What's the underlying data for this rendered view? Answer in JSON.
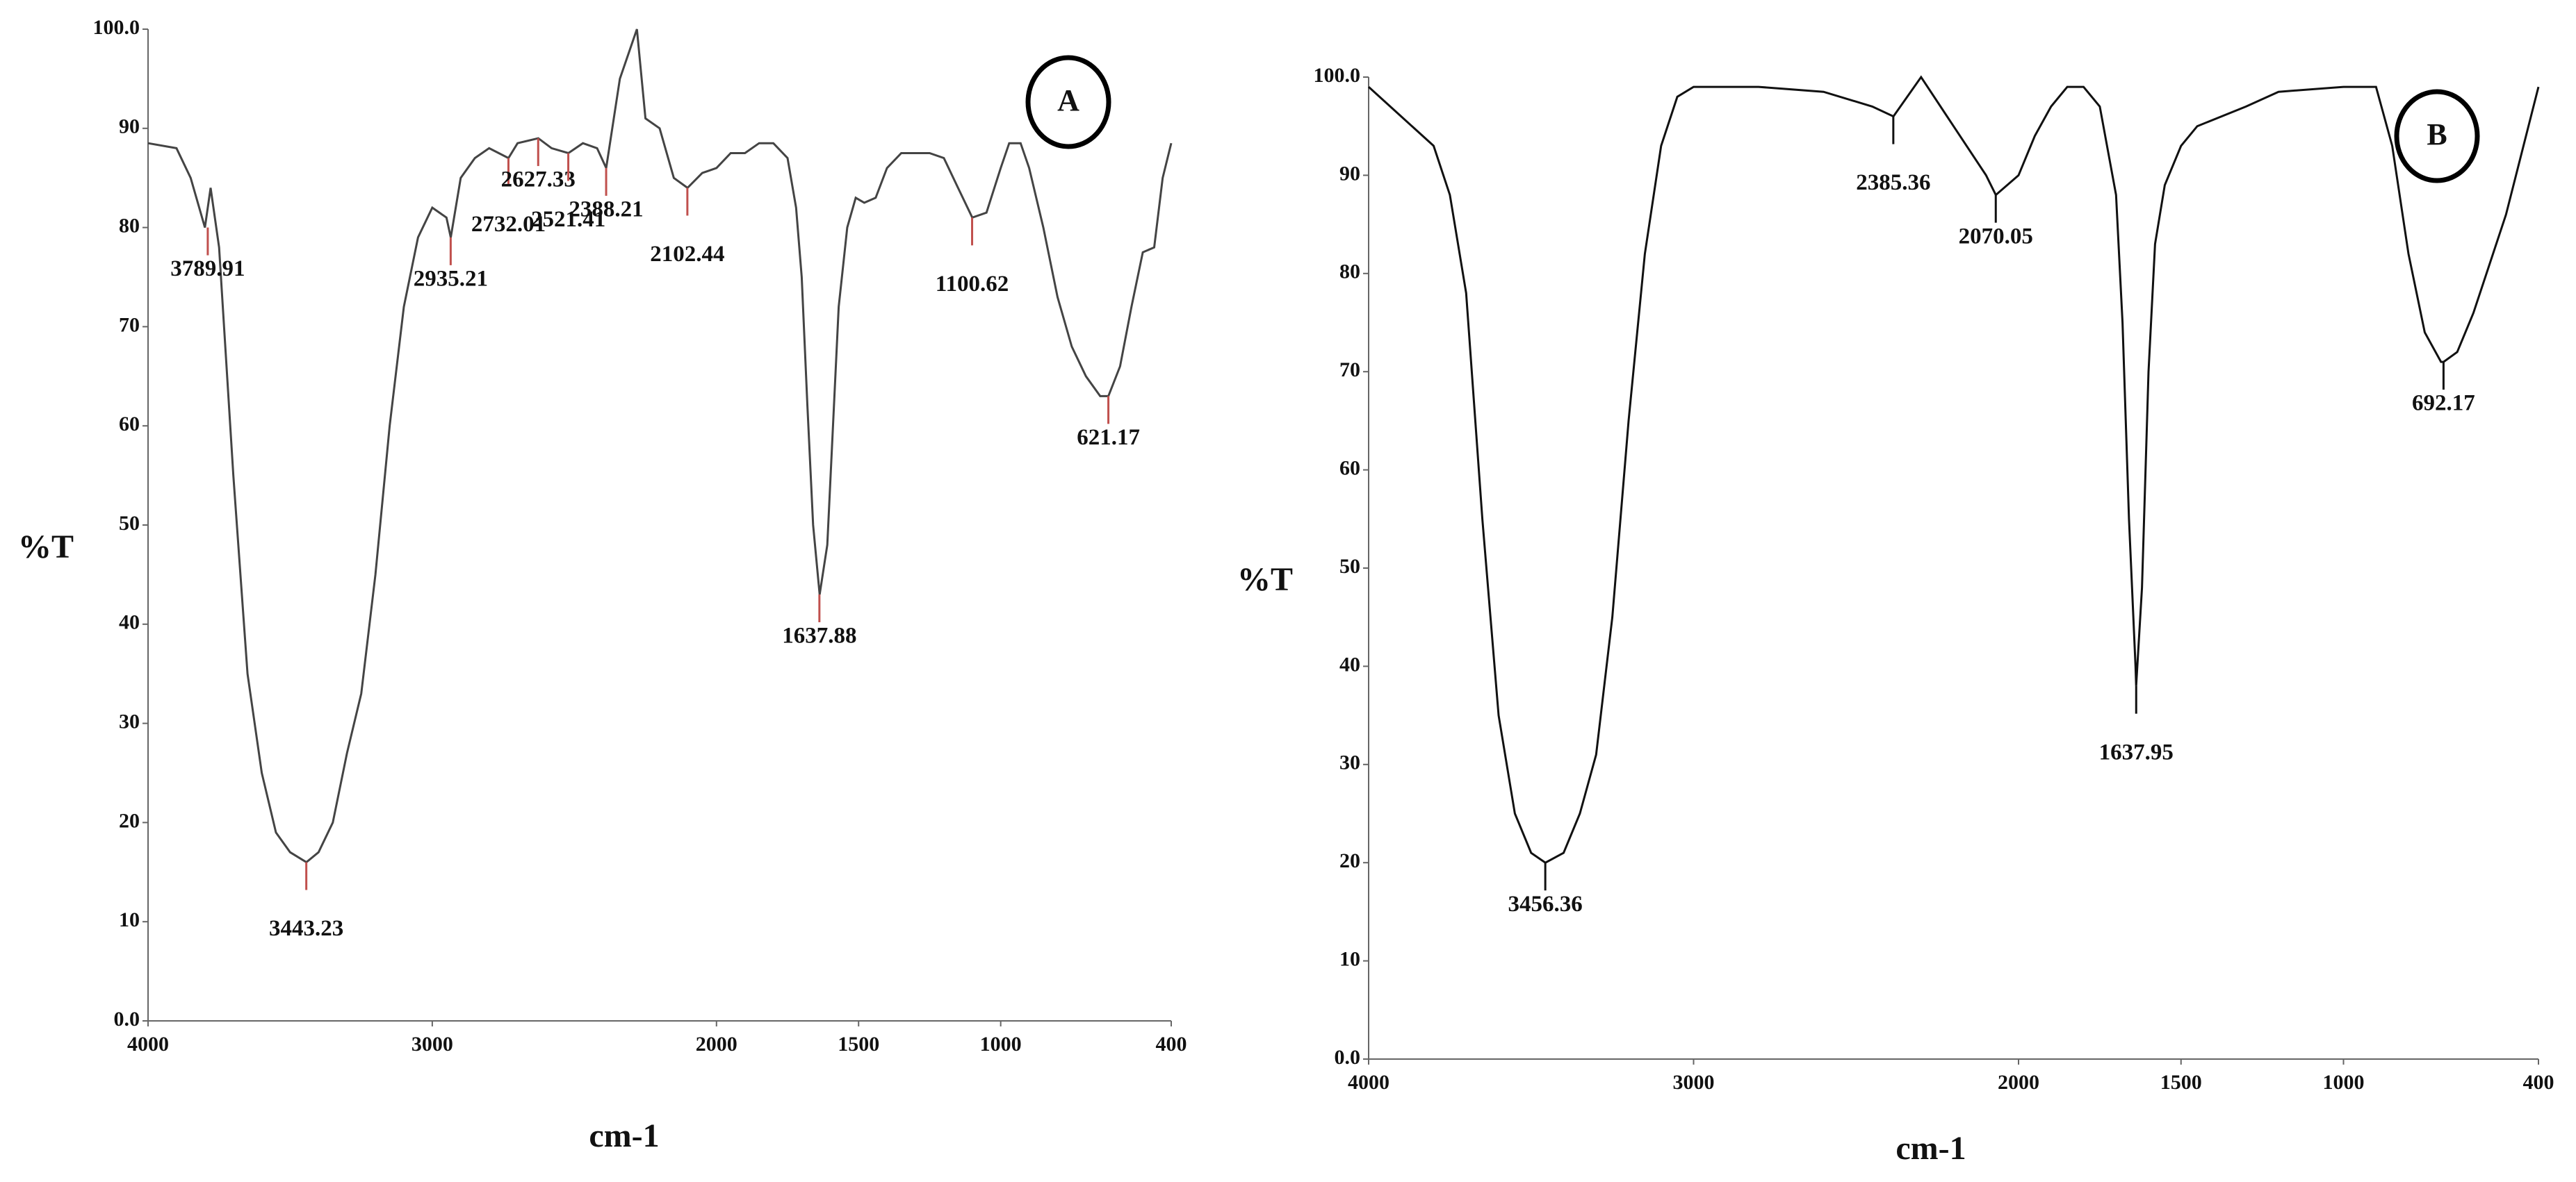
{
  "chart_data": [
    {
      "type": "line",
      "title": "A",
      "xlabel": "cm-1",
      "ylabel": "%T",
      "color": "#444444",
      "marker_color": "#c0504d",
      "xlim": [
        4000,
        400
      ],
      "xticks": [
        4000,
        3000,
        2000,
        1500,
        1000,
        400
      ],
      "ylim": [
        0,
        100
      ],
      "yticks": [
        {
          "value": 0,
          "label": "0.0"
        },
        10,
        20,
        30,
        40,
        50,
        60,
        70,
        80,
        90,
        {
          "value": 100,
          "label": "100.0"
        }
      ],
      "x": [
        4000,
        3900,
        3850,
        3800,
        3780,
        3750,
        3700,
        3650,
        3600,
        3550,
        3500,
        3443,
        3400,
        3350,
        3300,
        3250,
        3200,
        3150,
        3100,
        3050,
        3000,
        2950,
        2935,
        2900,
        2850,
        2800,
        2732,
        2700,
        2627,
        2580,
        2521,
        2470,
        2420,
        2388,
        2340,
        2280,
        2250,
        2200,
        2150,
        2102,
        2050,
        2000,
        1950,
        1900,
        1850,
        1800,
        1750,
        1720,
        1700,
        1680,
        1660,
        1637,
        1610,
        1590,
        1570,
        1540,
        1510,
        1480,
        1440,
        1400,
        1350,
        1250,
        1200,
        1150,
        1100,
        1050,
        1000,
        970,
        930,
        900,
        850,
        800,
        750,
        700,
        650,
        621,
        580,
        540,
        500,
        460,
        430,
        400
      ],
      "values": [
        88.5,
        88,
        85,
        80,
        84,
        78,
        55,
        35,
        25,
        19,
        17,
        16,
        17,
        20,
        27,
        33,
        45,
        60,
        72,
        79,
        82,
        81,
        79,
        85,
        87,
        88,
        87,
        88.5,
        89,
        88,
        87.5,
        88.5,
        88,
        86,
        95,
        100,
        91,
        90,
        85,
        84,
        85.5,
        86,
        87.5,
        87.5,
        88.5,
        88.5,
        87,
        82,
        75,
        62,
        50,
        43,
        48,
        60,
        72,
        80,
        83,
        82.5,
        83,
        86,
        87.5,
        87.5,
        87,
        84,
        81,
        81.5,
        86,
        88.5,
        88.5,
        86,
        80,
        73,
        68,
        65,
        63,
        63,
        66,
        72,
        77.5,
        78,
        85,
        88.5
      ],
      "peaks": [
        {
          "x": 3789.91,
          "y": 80
        },
        {
          "x": 3443.23,
          "y": 16
        },
        {
          "x": 2935.21,
          "y": 79
        },
        {
          "x": 2732.01,
          "y": 87
        },
        {
          "x": 2627.33,
          "y": 89
        },
        {
          "x": 2521.41,
          "y": 87.5
        },
        {
          "x": 2388.21,
          "y": 86
        },
        {
          "x": 2102.44,
          "y": 84
        },
        {
          "x": 1637.88,
          "y": 43
        },
        {
          "x": 1100.62,
          "y": 81
        },
        {
          "x": 621.17,
          "y": 63
        }
      ]
    },
    {
      "type": "line",
      "title": "B",
      "xlabel": "cm-1",
      "ylabel": "%T",
      "color": "#111111",
      "marker_color": "#111111",
      "xlim": [
        4000,
        400
      ],
      "xticks": [
        4000,
        3000,
        2000,
        1500,
        1000,
        400
      ],
      "ylim": [
        0,
        100
      ],
      "yticks": [
        {
          "value": 0,
          "label": "0.0"
        },
        10,
        20,
        30,
        40,
        50,
        60,
        70,
        80,
        90,
        {
          "value": 100,
          "label": "100.0"
        }
      ],
      "x": [
        4000,
        3900,
        3800,
        3750,
        3700,
        3650,
        3600,
        3550,
        3500,
        3456,
        3400,
        3350,
        3300,
        3250,
        3200,
        3150,
        3100,
        3050,
        3000,
        2800,
        2600,
        2450,
        2385,
        2300,
        2200,
        2100,
        2070,
        2000,
        1950,
        1900,
        1850,
        1800,
        1750,
        1700,
        1680,
        1660,
        1640,
        1638,
        1620,
        1600,
        1580,
        1550,
        1500,
        1450,
        1300,
        1200,
        1000,
        900,
        850,
        800,
        750,
        700,
        692,
        650,
        600,
        500,
        400
      ],
      "values": [
        99,
        96,
        93,
        88,
        78,
        55,
        35,
        25,
        21,
        20,
        21,
        25,
        31,
        45,
        65,
        82,
        93,
        98,
        99,
        99,
        98.5,
        97,
        96,
        100,
        95,
        90,
        88,
        90,
        94,
        97,
        99,
        99,
        97,
        88,
        75,
        55,
        40,
        38,
        48,
        70,
        83,
        89,
        93,
        95,
        97,
        98.5,
        99,
        99,
        93,
        82,
        74,
        71,
        71,
        72,
        76,
        86,
        99
      ],
      "peaks": [
        {
          "x": 3456.36,
          "y": 20
        },
        {
          "x": 2385.36,
          "y": 96
        },
        {
          "x": 2070.05,
          "y": 88
        },
        {
          "x": 1637.95,
          "y": 38
        },
        {
          "x": 692.17,
          "y": 71
        }
      ]
    }
  ]
}
